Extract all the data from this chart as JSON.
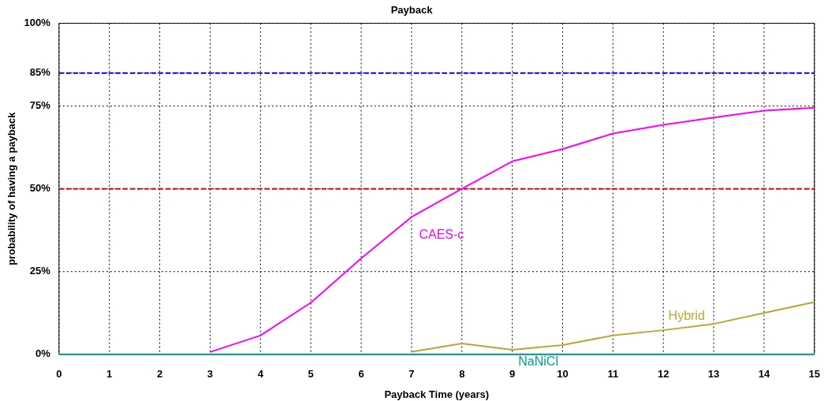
{
  "chart_data": {
    "type": "line",
    "title": "Payback",
    "xlabel": "Payback Time (years)",
    "ylabel": "probability of having a payback",
    "x": [
      0,
      1,
      2,
      3,
      4,
      5,
      6,
      7,
      8,
      9,
      10,
      11,
      12,
      13,
      14,
      15
    ],
    "series": [
      {
        "name": "CAES-c",
        "color": "#ff00ff",
        "values": [
          null,
          null,
          null,
          0.7,
          5.7,
          15.6,
          29,
          41.5,
          50,
          58.3,
          62,
          66.7,
          69.3,
          71.5,
          73.6,
          74.5
        ]
      },
      {
        "name": "Hybrid",
        "color": "#b8a830",
        "values": [
          null,
          null,
          null,
          null,
          null,
          null,
          null,
          0.8,
          3.3,
          1.4,
          2.8,
          5.7,
          7.3,
          9.2,
          12.5,
          15.8
        ]
      },
      {
        "name": "NaNiCl",
        "color": "#00a0a0",
        "values": [
          0,
          0,
          0,
          0,
          0,
          0,
          0,
          0,
          0,
          0,
          0,
          0,
          0,
          0,
          0,
          0
        ]
      }
    ],
    "xlim": [
      0,
      15
    ],
    "xticks": [
      0,
      1,
      2,
      3,
      4,
      5,
      6,
      7,
      8,
      9,
      10,
      11,
      12,
      13,
      14,
      15
    ],
    "ylim": [
      0,
      100
    ],
    "yticks": [
      {
        "value": 0,
        "label": "0%"
      },
      {
        "value": 25,
        "label": "25%"
      },
      {
        "value": 50,
        "label": "50%"
      },
      {
        "value": 75,
        "label": "75%"
      },
      {
        "value": 85,
        "label": "85%"
      },
      {
        "value": 100,
        "label": "100%"
      }
    ],
    "ref_lines": [
      {
        "axis": "y",
        "value": 85,
        "color": "#0000ff",
        "line_style": "dashed"
      },
      {
        "axis": "y",
        "value": 50,
        "color": "#ff0000",
        "line_style": "dashed"
      }
    ],
    "grid": true,
    "legend": false,
    "marker": "none",
    "line_style": "solid"
  }
}
